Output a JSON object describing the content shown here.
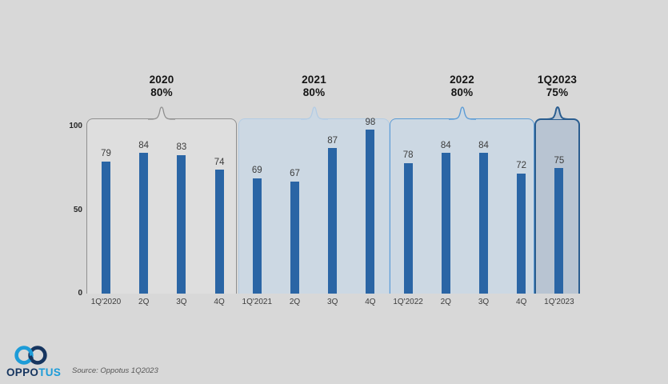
{
  "page": {
    "background": "#d8d8d8"
  },
  "chart_data": {
    "type": "bar",
    "title": "",
    "categories": [
      "1Q'2020",
      "2Q",
      "3Q",
      "4Q",
      "1Q'2021",
      "2Q",
      "3Q",
      "4Q",
      "1Q'2022",
      "2Q",
      "3Q",
      "4Q",
      "1Q'2023"
    ],
    "values": [
      79,
      84,
      83,
      74,
      69,
      67,
      87,
      98,
      78,
      84,
      84,
      72,
      75
    ],
    "bar_color": "#2a65a5",
    "ylim": [
      0,
      100
    ],
    "y_ticks": [
      100,
      50,
      0
    ],
    "grid": false,
    "legend": false,
    "groups": [
      {
        "label": "2020",
        "annotation": "80%",
        "span": [
          0,
          3
        ],
        "panel_fill": "#dedede",
        "panel_border": "#8f8f8f",
        "border_width": 1.3
      },
      {
        "label": "2021",
        "annotation": "80%",
        "span": [
          4,
          7
        ],
        "panel_fill": "#ccd8e3",
        "panel_border": "#b3cce4",
        "border_width": 1.3
      },
      {
        "label": "2022",
        "annotation": "80%",
        "span": [
          8,
          11
        ],
        "panel_fill": "#ccd8e3",
        "panel_border": "#5b9bd5",
        "border_width": 1.4
      },
      {
        "label": "1Q2023",
        "annotation": "75%",
        "span": [
          12,
          12
        ],
        "panel_fill": "#b8c4d2",
        "panel_border": "#2a5d8f",
        "border_width": 2
      }
    ]
  },
  "logo": {
    "text_primary": "OPPO",
    "text_secondary": "TUS",
    "navy": "#16355f",
    "blue": "#1d9cd8"
  },
  "source_note": "Source: Oppotus 1Q2023"
}
